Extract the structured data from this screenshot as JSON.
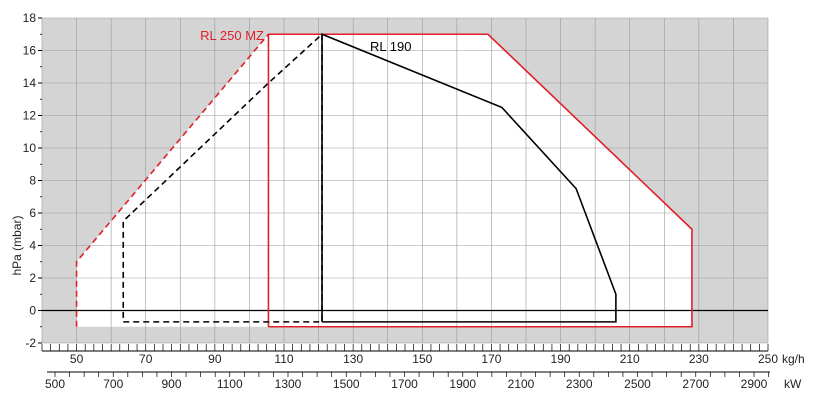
{
  "chart_data": {
    "type": "line",
    "ylabel": "hPa (mbar)",
    "ylim": [
      -2,
      18
    ],
    "yticks": [
      "-2",
      "0",
      "2",
      "4",
      "6",
      "8",
      "10",
      "12",
      "14",
      "16",
      "18"
    ],
    "x_axis_kgh": {
      "unit": "kg/h",
      "range": [
        40,
        250
      ],
      "ticks": [
        "50",
        "70",
        "90",
        "110",
        "130",
        "150",
        "170",
        "190",
        "210",
        "230",
        "250"
      ]
    },
    "x_axis_kw": {
      "unit": "kW",
      "ticks": [
        "500",
        "700",
        "900",
        "1100",
        "1300",
        "1500",
        "1700",
        "1900",
        "2100",
        "2300",
        "2500",
        "2700",
        "2900"
      ]
    },
    "grid": true,
    "colors": {
      "rl250": "#e0202a",
      "rl190": "#000000",
      "shade": "#d4d4d4",
      "grid": "#9a9a9a"
    },
    "series": [
      {
        "name": "RL 250 MZ",
        "color": "#e0202a",
        "solid": [
          [
            105.5,
            -1.0
          ],
          [
            105.5,
            17.0
          ],
          [
            169.0,
            17.0
          ],
          [
            228.0,
            5.0
          ],
          [
            228.0,
            -1.0
          ],
          [
            105.5,
            -1.0
          ]
        ],
        "dashed": [
          [
            50.0,
            -1.0
          ],
          [
            50.0,
            3.0
          ],
          [
            105.5,
            17.0
          ]
        ]
      },
      {
        "name": "RL 190",
        "color": "#000000",
        "solid": [
          [
            121.0,
            -0.7
          ],
          [
            121.0,
            17.0
          ],
          [
            173.0,
            12.5
          ],
          [
            194.5,
            7.5
          ],
          [
            206.0,
            1.0
          ],
          [
            206.0,
            -0.7
          ],
          [
            121.0,
            -0.7
          ]
        ],
        "dashed": [
          [
            63.5,
            -0.7
          ],
          [
            121.0,
            -0.7
          ],
          [
            121.0,
            17.0
          ],
          [
            105.5,
            14.0
          ],
          [
            63.5,
            5.5
          ],
          [
            63.5,
            -0.7
          ]
        ]
      }
    ]
  }
}
